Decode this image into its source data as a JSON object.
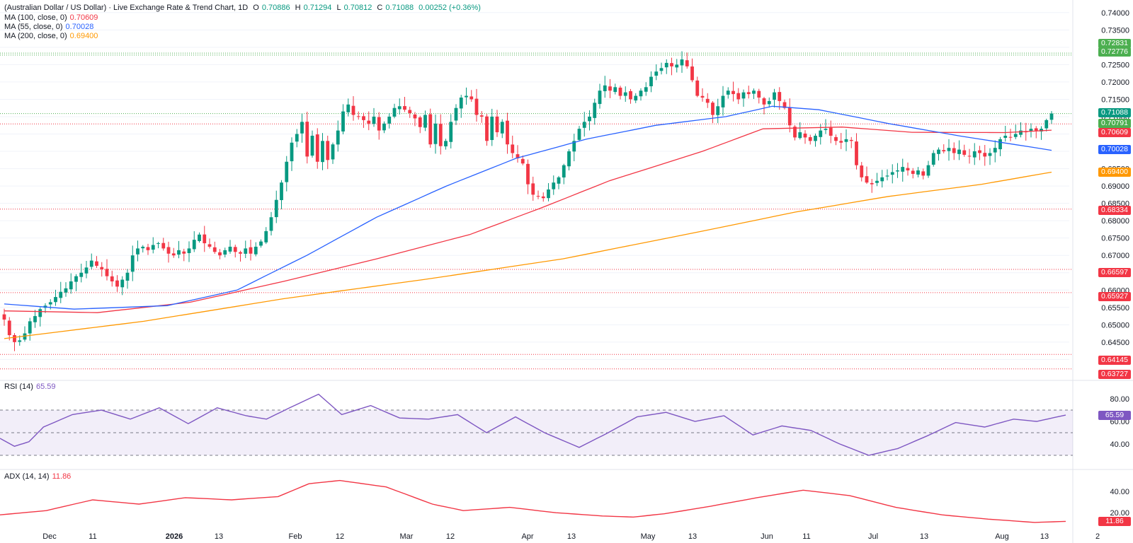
{
  "header": {
    "symbol": "(Australian Dollar / US Dollar) · Live Exchange Rate & Trend Chart, 1D",
    "o_label": "O",
    "o_value": "0.70886",
    "h_label": "H",
    "h_value": "0.71294",
    "l_label": "L",
    "l_value": "0.70812",
    "c_label": "C",
    "c_value": "0.71088",
    "change": "0.00252 (+0.36%)"
  },
  "ma_legend": [
    {
      "label": "MA (100, close, 0)",
      "value": "0.70609",
      "color": "#f23645"
    },
    {
      "label": "MA (55, close, 0)",
      "value": "0.70028",
      "color": "#2962ff"
    },
    {
      "label": "MA (200, close, 0)",
      "value": "0.69400",
      "color": "#ff9800"
    }
  ],
  "rsi_legend": {
    "label": "RSI (14)",
    "value": "65.59",
    "color": "#7e57c2"
  },
  "adx_legend": {
    "label": "ADX (14, 14)",
    "value": "11.86",
    "color": "#f23645"
  },
  "price_axis_labels": [
    "0.74000",
    "0.73500",
    "0.73000",
    "0.72500",
    "0.72000",
    "0.71500",
    "0.71000",
    "0.70500",
    "0.70000",
    "0.69500",
    "0.69000",
    "0.68500",
    "0.68000",
    "0.67500",
    "0.67000",
    "0.66500",
    "0.66000",
    "0.65500",
    "0.65000",
    "0.64500",
    "0.64000"
  ],
  "price_tags": [
    {
      "text": "0.72831",
      "color": "#4caf50"
    },
    {
      "text": "0.72776",
      "color": "#4caf50"
    },
    {
      "text": "0.71088",
      "color": "#089981"
    },
    {
      "text": "0.70791",
      "color": "#4caf50"
    },
    {
      "text": "0.70609",
      "color": "#f23645"
    },
    {
      "text": "0.70028",
      "color": "#2962ff"
    },
    {
      "text": "0.69400",
      "color": "#ff9800"
    },
    {
      "text": "0.68334",
      "color": "#f23645"
    },
    {
      "text": "0.66597",
      "color": "#f23645"
    },
    {
      "text": "0.65927",
      "color": "#f23645"
    },
    {
      "text": "0.64145",
      "color": "#f23645"
    },
    {
      "text": "0.63727",
      "color": "#f23645"
    }
  ],
  "rsi_axis_labels": [
    "80.00",
    "60.00",
    "40.00"
  ],
  "rsi_tag": {
    "text": "65.59",
    "color": "#7e57c2"
  },
  "adx_axis_labels": [
    "40.00",
    "20.00"
  ],
  "adx_tag": {
    "text": "11.86",
    "color": "#f23645"
  },
  "time_axis_labels": [
    {
      "text": "Dec",
      "bold": false
    },
    {
      "text": "11",
      "bold": false
    },
    {
      "text": "2026",
      "bold": true
    },
    {
      "text": "13",
      "bold": false
    },
    {
      "text": "Feb",
      "bold": false
    },
    {
      "text": "12",
      "bold": false
    },
    {
      "text": "Mar",
      "bold": false
    },
    {
      "text": "12",
      "bold": false
    },
    {
      "text": "Apr",
      "bold": false
    },
    {
      "text": "13",
      "bold": false
    },
    {
      "text": "May",
      "bold": false
    },
    {
      "text": "13",
      "bold": false
    },
    {
      "text": "Jun",
      "bold": false
    },
    {
      "text": "11",
      "bold": false
    },
    {
      "text": "Jul",
      "bold": false
    },
    {
      "text": "13",
      "bold": false
    },
    {
      "text": "Aug",
      "bold": false
    },
    {
      "text": "13",
      "bold": false
    },
    {
      "text": "2",
      "bold": false
    }
  ],
  "colors": {
    "up": "#089981",
    "down": "#f23645",
    "grid": "#f0f3fa",
    "rsi_band": "rgba(126,87,194,0.10)"
  },
  "chart_data": [
    {
      "type": "candlestick",
      "title": "(Australian Dollar / US Dollar) · Live Exchange Rate & Trend Chart, 1D",
      "ylim": [
        0.636,
        0.742
      ],
      "horizontal_levels": [
        0.72831,
        0.72776,
        0.71088,
        0.70791,
        0.68334,
        0.66597,
        0.65927,
        0.64145,
        0.63727
      ],
      "ohlc_anchor_closes": [
        0.6515,
        0.647,
        0.645,
        0.6455,
        0.6475,
        0.651,
        0.6525,
        0.6545,
        0.6555,
        0.6565,
        0.658,
        0.6595,
        0.6605,
        0.6625,
        0.664,
        0.665,
        0.6665,
        0.6685,
        0.667,
        0.666,
        0.664,
        0.6625,
        0.661,
        0.663,
        0.665,
        0.67,
        0.672,
        0.6725,
        0.6715,
        0.673,
        0.6735,
        0.672,
        0.6705,
        0.67,
        0.6715,
        0.6705,
        0.672,
        0.6745,
        0.676,
        0.6735,
        0.6725,
        0.671,
        0.67,
        0.6715,
        0.6725,
        0.671,
        0.6705,
        0.672,
        0.6705,
        0.6725,
        0.674,
        0.677,
        0.681,
        0.686,
        0.691,
        0.697,
        0.7025,
        0.705,
        0.7085,
        0.6985,
        0.7045,
        0.697,
        0.703,
        0.6975,
        0.702,
        0.706,
        0.7115,
        0.7135,
        0.7105,
        0.71,
        0.709,
        0.708,
        0.71,
        0.706,
        0.708,
        0.71,
        0.7125,
        0.713,
        0.712,
        0.711,
        0.7095,
        0.707,
        0.7105,
        0.702,
        0.708,
        0.7015,
        0.703,
        0.7085,
        0.7125,
        0.7155,
        0.716,
        0.715,
        0.7105,
        0.71,
        0.703,
        0.71,
        0.7055,
        0.7085,
        0.702,
        0.6995,
        0.698,
        0.6965,
        0.6905,
        0.6875,
        0.687,
        0.6865,
        0.689,
        0.691,
        0.6925,
        0.696,
        0.7,
        0.703,
        0.7065,
        0.7085,
        0.71,
        0.714,
        0.7175,
        0.719,
        0.7175,
        0.7185,
        0.716,
        0.717,
        0.715,
        0.716,
        0.7175,
        0.7185,
        0.7215,
        0.723,
        0.724,
        0.7255,
        0.7245,
        0.725,
        0.7265,
        0.7245,
        0.7205,
        0.716,
        0.7155,
        0.714,
        0.7105,
        0.713,
        0.716,
        0.7175,
        0.7165,
        0.715,
        0.717,
        0.7165,
        0.7175,
        0.7155,
        0.7135,
        0.7145,
        0.717,
        0.7145,
        0.7125,
        0.7075,
        0.704,
        0.7055,
        0.704,
        0.703,
        0.7045,
        0.706,
        0.7065,
        0.7045,
        0.703,
        0.7025,
        0.7035,
        0.703,
        0.696,
        0.6925,
        0.691,
        0.6905,
        0.6915,
        0.6925,
        0.693,
        0.694,
        0.6945,
        0.6955,
        0.6945,
        0.6935,
        0.6945,
        0.693,
        0.696,
        0.6995,
        0.7005,
        0.7,
        0.701,
        0.6995,
        0.7005,
        0.699,
        0.6985,
        0.7,
        0.6995,
        0.6985,
        0.6995,
        0.701,
        0.7035,
        0.7045,
        0.704,
        0.705,
        0.706,
        0.7055,
        0.7065,
        0.706,
        0.7065,
        0.709,
        0.7109
      ],
      "series": [
        {
          "name": "MA (100, close, 0)",
          "last": 0.70609
        },
        {
          "name": "MA (55, close, 0)",
          "last": 0.70028
        },
        {
          "name": "MA (200, close, 0)",
          "last": 0.694
        }
      ],
      "ma_anchors": {
        "ma100": [
          [
            0,
            0.654
          ],
          [
            20,
            0.6535
          ],
          [
            40,
            0.6565
          ],
          [
            60,
            0.6625
          ],
          [
            80,
            0.669
          ],
          [
            100,
            0.676
          ],
          [
            115,
            0.6835
          ],
          [
            130,
            0.6915
          ],
          [
            150,
            0.7
          ],
          [
            163,
            0.7065
          ],
          [
            180,
            0.707
          ],
          [
            195,
            0.7055
          ],
          [
            215,
            0.7054
          ],
          [
            225,
            0.7061
          ]
        ],
        "ma55": [
          [
            0,
            0.656
          ],
          [
            15,
            0.6545
          ],
          [
            35,
            0.6555
          ],
          [
            50,
            0.66
          ],
          [
            65,
            0.67
          ],
          [
            80,
            0.681
          ],
          [
            95,
            0.69
          ],
          [
            110,
            0.698
          ],
          [
            125,
            0.7035
          ],
          [
            140,
            0.7075
          ],
          [
            155,
            0.71
          ],
          [
            165,
            0.713
          ],
          [
            175,
            0.712
          ],
          [
            190,
            0.708
          ],
          [
            205,
            0.7045
          ],
          [
            225,
            0.7003
          ]
        ],
        "ma200": [
          [
            0,
            0.646
          ],
          [
            30,
            0.651
          ],
          [
            60,
            0.6575
          ],
          [
            90,
            0.663
          ],
          [
            120,
            0.669
          ],
          [
            150,
            0.677
          ],
          [
            170,
            0.6825
          ],
          [
            190,
            0.687
          ],
          [
            210,
            0.6905
          ],
          [
            225,
            0.694
          ]
        ]
      }
    },
    {
      "type": "line",
      "title": "RSI (14)",
      "ylim": [
        20,
        90
      ],
      "levels": [
        70,
        50,
        30
      ],
      "anchors": [
        [
          0,
          45
        ],
        [
          5,
          38
        ],
        [
          10,
          42
        ],
        [
          15,
          55
        ],
        [
          25,
          66
        ],
        [
          35,
          70
        ],
        [
          45,
          62
        ],
        [
          55,
          72
        ],
        [
          65,
          58
        ],
        [
          75,
          72
        ],
        [
          85,
          65
        ],
        [
          92,
          62
        ],
        [
          100,
          72
        ],
        [
          110,
          84
        ],
        [
          118,
          66
        ],
        [
          128,
          74
        ],
        [
          138,
          63
        ],
        [
          148,
          62
        ],
        [
          158,
          66
        ],
        [
          168,
          50
        ],
        [
          178,
          64
        ],
        [
          188,
          50
        ],
        [
          200,
          37
        ],
        [
          210,
          50
        ],
        [
          220,
          64
        ],
        [
          230,
          68
        ],
        [
          240,
          60
        ],
        [
          250,
          65
        ],
        [
          260,
          48
        ],
        [
          270,
          56
        ],
        [
          280,
          52
        ],
        [
          290,
          40
        ],
        [
          300,
          30
        ],
        [
          310,
          36
        ],
        [
          320,
          47
        ],
        [
          330,
          59
        ],
        [
          340,
          55
        ],
        [
          350,
          62
        ],
        [
          358,
          60
        ],
        [
          368,
          65.59
        ]
      ],
      "last": 65.59
    },
    {
      "type": "line",
      "title": "ADX (14, 14)",
      "ylim": [
        5,
        55
      ],
      "anchors": [
        [
          0,
          18
        ],
        [
          15,
          22
        ],
        [
          30,
          32
        ],
        [
          45,
          28
        ],
        [
          60,
          34
        ],
        [
          75,
          32
        ],
        [
          90,
          35
        ],
        [
          100,
          47
        ],
        [
          110,
          50
        ],
        [
          125,
          44
        ],
        [
          140,
          28
        ],
        [
          150,
          22
        ],
        [
          165,
          25
        ],
        [
          180,
          20
        ],
        [
          195,
          17
        ],
        [
          205,
          16
        ],
        [
          215,
          19
        ],
        [
          230,
          26
        ],
        [
          245,
          34
        ],
        [
          260,
          41
        ],
        [
          275,
          36
        ],
        [
          290,
          25
        ],
        [
          305,
          18
        ],
        [
          320,
          14
        ],
        [
          335,
          11
        ],
        [
          345,
          12
        ]
      ],
      "last": 11.86
    }
  ]
}
